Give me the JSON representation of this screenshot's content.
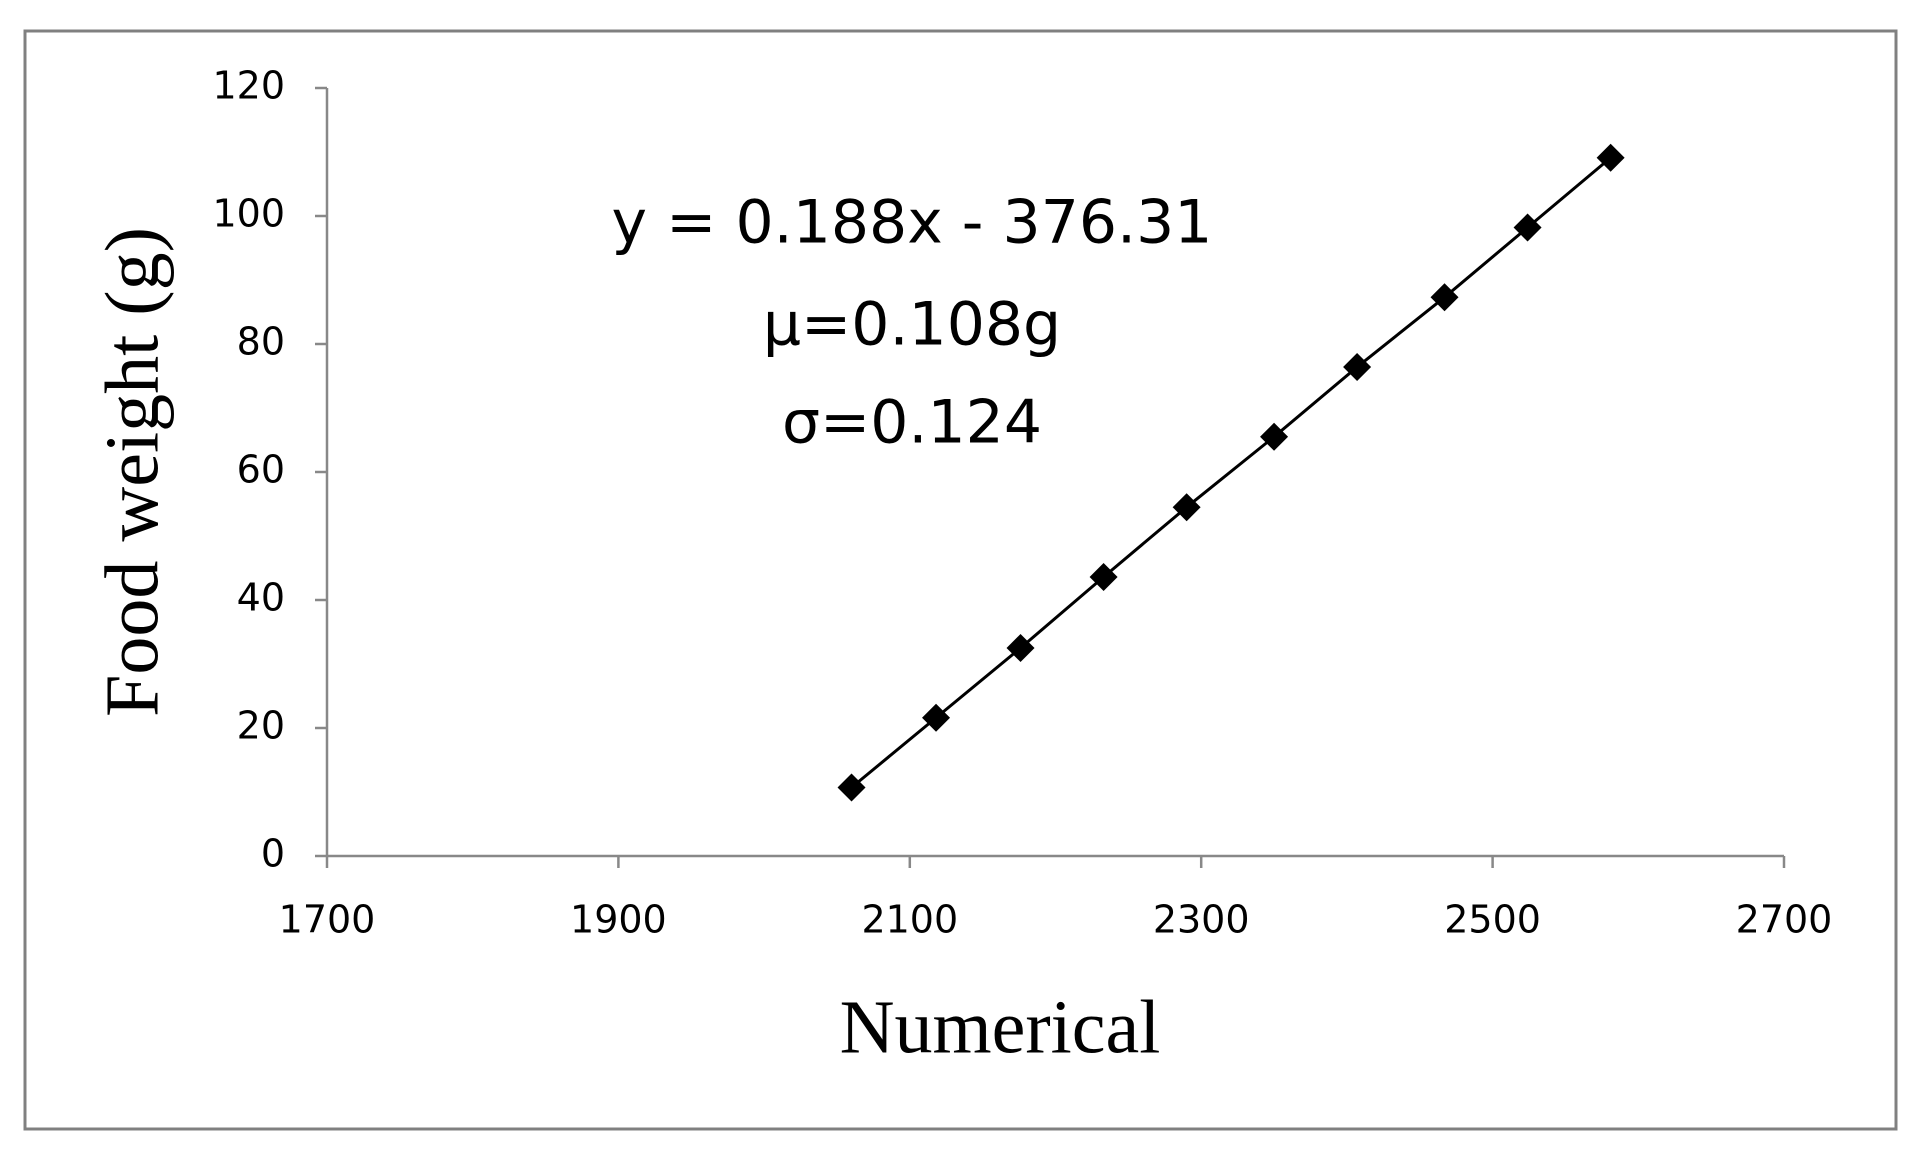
{
  "chart_data": {
    "type": "line",
    "x_label": "Numerical",
    "y_label": "Food weight (g)",
    "annotations": [
      "y = 0.188x - 376.31",
      "μ=0.108g",
      "σ=0.124"
    ],
    "series": [
      {
        "color": "#000000",
        "x": [
          2060,
          2118,
          2176,
          2233,
          2290,
          2350,
          2407,
          2467,
          2524,
          2581
        ],
        "values": [
          10.7,
          21.6,
          32.5,
          43.6,
          54.5,
          65.5,
          76.4,
          87.3,
          98.2,
          109.1
        ]
      }
    ],
    "xlim": [
      1700,
      2700
    ],
    "xticks": [
      1700,
      1900,
      2100,
      2300,
      2500,
      2700
    ],
    "ylim": [
      0,
      120
    ],
    "yticks": [
      0,
      20,
      40,
      60,
      80,
      100,
      120
    ],
    "grid": false
  }
}
